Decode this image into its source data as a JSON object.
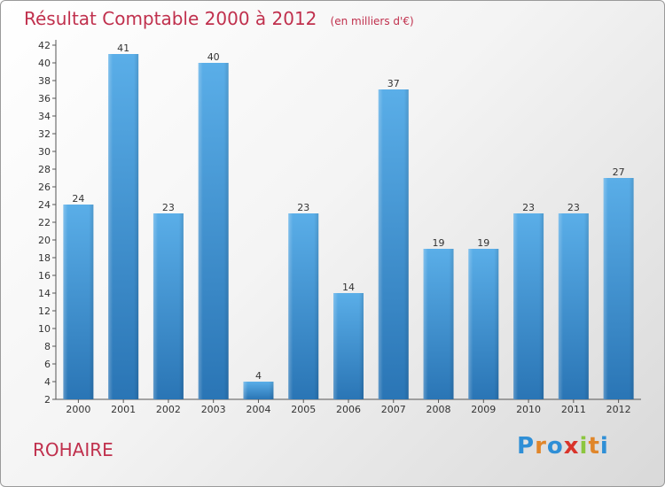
{
  "title": "Résultat Comptable 2000 à 2012",
  "subtitle": "(en milliers d'€)",
  "commune": "ROHAIRE",
  "logo": "Proxiti",
  "colors": {
    "title": "#c0304d",
    "bar_top": "#5aaee8",
    "bar_bottom": "#2a75b5"
  },
  "chart_data": {
    "type": "bar",
    "title": "Résultat Comptable 2000 à 2012",
    "xlabel": "",
    "ylabel": "",
    "categories": [
      "2000",
      "2001",
      "2002",
      "2003",
      "2004",
      "2005",
      "2006",
      "2007",
      "2008",
      "2009",
      "2010",
      "2011",
      "2012"
    ],
    "values": [
      24,
      41,
      23,
      40,
      4,
      23,
      14,
      37,
      19,
      19,
      23,
      23,
      27
    ],
    "ylim": [
      2,
      42
    ],
    "yticks": [
      2,
      4,
      6,
      8,
      10,
      12,
      14,
      16,
      18,
      20,
      22,
      24,
      26,
      28,
      30,
      32,
      34,
      36,
      38,
      40,
      42
    ],
    "grid": false,
    "legend": "none"
  }
}
